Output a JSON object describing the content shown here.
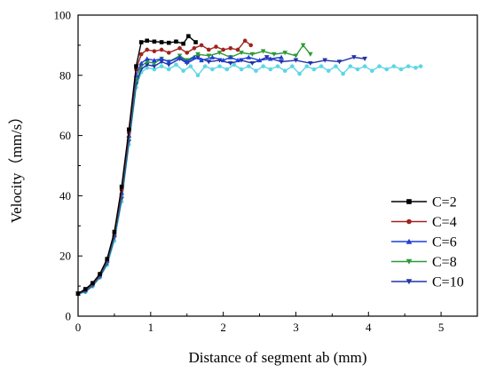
{
  "chart_data": {
    "type": "line",
    "title": "",
    "xlabel": "Distance of segment ab (mm)",
    "ylabel": "Velocity（mm/s）",
    "xlim": [
      0,
      5.5
    ],
    "ylim": [
      0,
      100
    ],
    "xticks": [
      "0",
      "1",
      "2",
      "3",
      "4",
      "5"
    ],
    "yticks": [
      "0",
      "20",
      "40",
      "60",
      "80",
      "100"
    ],
    "grid": false,
    "legend": "right",
    "series": [
      {
        "name": "C=2",
        "color": "#000000",
        "marker": "square",
        "points": [
          [
            0,
            7.5
          ],
          [
            0.1,
            9
          ],
          [
            0.2,
            11
          ],
          [
            0.3,
            14
          ],
          [
            0.4,
            19
          ],
          [
            0.5,
            28
          ],
          [
            0.6,
            43
          ],
          [
            0.7,
            62
          ],
          [
            0.8,
            83
          ],
          [
            0.87,
            91
          ],
          [
            0.95,
            91.5
          ],
          [
            1.05,
            91.2
          ],
          [
            1.15,
            91
          ],
          [
            1.25,
            90.8
          ],
          [
            1.35,
            91.2
          ],
          [
            1.45,
            90.5
          ],
          [
            1.52,
            93
          ],
          [
            1.62,
            91
          ]
        ]
      },
      {
        "name": "C=4",
        "color": "#a0231e",
        "marker": "circle",
        "points": [
          [
            0,
            7.5
          ],
          [
            0.1,
            8.8
          ],
          [
            0.2,
            10.8
          ],
          [
            0.3,
            13.8
          ],
          [
            0.4,
            18.8
          ],
          [
            0.5,
            27.5
          ],
          [
            0.6,
            42
          ],
          [
            0.7,
            61
          ],
          [
            0.8,
            82
          ],
          [
            0.87,
            87
          ],
          [
            0.95,
            88.5
          ],
          [
            1.05,
            88
          ],
          [
            1.15,
            88.5
          ],
          [
            1.25,
            87.5
          ],
          [
            1.4,
            89
          ],
          [
            1.5,
            87.5
          ],
          [
            1.6,
            89
          ],
          [
            1.7,
            90
          ],
          [
            1.8,
            88.5
          ],
          [
            1.9,
            89.5
          ],
          [
            2.0,
            88.5
          ],
          [
            2.1,
            89
          ],
          [
            2.2,
            88.5
          ],
          [
            2.3,
            91.5
          ],
          [
            2.38,
            90
          ]
        ]
      },
      {
        "name": "C=6",
        "color": "#1f3fd8",
        "marker": "triangle-up",
        "points": [
          [
            0,
            7.5
          ],
          [
            0.1,
            8.6
          ],
          [
            0.2,
            10.6
          ],
          [
            0.3,
            13.5
          ],
          [
            0.4,
            18.5
          ],
          [
            0.5,
            27
          ],
          [
            0.6,
            41
          ],
          [
            0.7,
            60
          ],
          [
            0.8,
            80
          ],
          [
            0.87,
            84
          ],
          [
            0.95,
            85.5
          ],
          [
            1.05,
            85
          ],
          [
            1.15,
            85.5
          ],
          [
            1.25,
            84.5
          ],
          [
            1.4,
            86
          ],
          [
            1.5,
            84.5
          ],
          [
            1.6,
            86
          ],
          [
            1.7,
            85
          ],
          [
            1.85,
            86
          ],
          [
            2.0,
            85
          ],
          [
            2.1,
            86
          ],
          [
            2.2,
            85
          ],
          [
            2.35,
            86
          ],
          [
            2.5,
            85
          ],
          [
            2.65,
            85.5
          ],
          [
            2.8,
            86
          ]
        ]
      },
      {
        "name": "C=8",
        "color": "#2e9a38",
        "marker": "triangle-down",
        "points": [
          [
            0,
            7.5
          ],
          [
            0.1,
            8.4
          ],
          [
            0.2,
            10.3
          ],
          [
            0.3,
            13.2
          ],
          [
            0.4,
            18
          ],
          [
            0.5,
            26.5
          ],
          [
            0.6,
            40
          ],
          [
            0.7,
            59
          ],
          [
            0.8,
            78
          ],
          [
            0.87,
            83
          ],
          [
            0.95,
            84.5
          ],
          [
            1.05,
            84
          ],
          [
            1.15,
            85.5
          ],
          [
            1.25,
            84.5
          ],
          [
            1.4,
            86.5
          ],
          [
            1.5,
            85
          ],
          [
            1.65,
            87
          ],
          [
            1.8,
            86.5
          ],
          [
            1.95,
            87.5
          ],
          [
            2.1,
            86
          ],
          [
            2.25,
            87.5
          ],
          [
            2.4,
            87
          ],
          [
            2.55,
            88
          ],
          [
            2.7,
            87
          ],
          [
            2.85,
            87.5
          ],
          [
            3.0,
            86.5
          ],
          [
            3.1,
            90
          ],
          [
            3.2,
            87
          ]
        ]
      },
      {
        "name": "C=10",
        "color": "#2233aa",
        "marker": "triangle-down",
        "points": [
          [
            0,
            7.5
          ],
          [
            0.1,
            8.2
          ],
          [
            0.2,
            10.1
          ],
          [
            0.3,
            13
          ],
          [
            0.4,
            17.5
          ],
          [
            0.5,
            26
          ],
          [
            0.6,
            39
          ],
          [
            0.7,
            58
          ],
          [
            0.8,
            77
          ],
          [
            0.87,
            82
          ],
          [
            0.95,
            83.5
          ],
          [
            1.05,
            83
          ],
          [
            1.15,
            84.5
          ],
          [
            1.25,
            83.5
          ],
          [
            1.4,
            85.5
          ],
          [
            1.5,
            84
          ],
          [
            1.65,
            86
          ],
          [
            1.8,
            84.5
          ],
          [
            1.95,
            85
          ],
          [
            2.1,
            84
          ],
          [
            2.25,
            85
          ],
          [
            2.4,
            84
          ],
          [
            2.6,
            86
          ],
          [
            2.8,
            84.5
          ],
          [
            3.0,
            85
          ],
          [
            3.2,
            84
          ],
          [
            3.4,
            85
          ],
          [
            3.6,
            84.5
          ],
          [
            3.8,
            86
          ],
          [
            3.95,
            85.5
          ]
        ]
      },
      {
        "name": "",
        "color": "#5cd6e6",
        "marker": "circle",
        "points": [
          [
            0,
            7.3
          ],
          [
            0.1,
            8
          ],
          [
            0.2,
            9.9
          ],
          [
            0.3,
            12.8
          ],
          [
            0.4,
            17
          ],
          [
            0.5,
            25
          ],
          [
            0.6,
            38
          ],
          [
            0.7,
            57
          ],
          [
            0.8,
            76
          ],
          [
            0.87,
            81
          ],
          [
            0.95,
            82.5
          ],
          [
            1.05,
            82
          ],
          [
            1.15,
            83
          ],
          [
            1.25,
            82
          ],
          [
            1.35,
            83.5
          ],
          [
            1.45,
            81.5
          ],
          [
            1.55,
            83
          ],
          [
            1.65,
            80
          ],
          [
            1.75,
            83
          ],
          [
            1.85,
            82
          ],
          [
            1.95,
            83
          ],
          [
            2.05,
            82
          ],
          [
            2.15,
            83.5
          ],
          [
            2.25,
            82
          ],
          [
            2.35,
            83
          ],
          [
            2.45,
            81.5
          ],
          [
            2.55,
            83
          ],
          [
            2.65,
            82
          ],
          [
            2.75,
            83
          ],
          [
            2.85,
            81.5
          ],
          [
            2.95,
            83
          ],
          [
            3.05,
            80.5
          ],
          [
            3.15,
            83
          ],
          [
            3.25,
            82
          ],
          [
            3.35,
            83
          ],
          [
            3.45,
            81.5
          ],
          [
            3.55,
            83
          ],
          [
            3.65,
            80.5
          ],
          [
            3.75,
            83
          ],
          [
            3.85,
            82
          ],
          [
            3.95,
            83
          ],
          [
            4.05,
            81.5
          ],
          [
            4.15,
            83
          ],
          [
            4.25,
            82
          ],
          [
            4.35,
            83
          ],
          [
            4.45,
            82
          ],
          [
            4.55,
            83
          ],
          [
            4.65,
            82.5
          ],
          [
            4.72,
            83
          ]
        ]
      }
    ]
  }
}
